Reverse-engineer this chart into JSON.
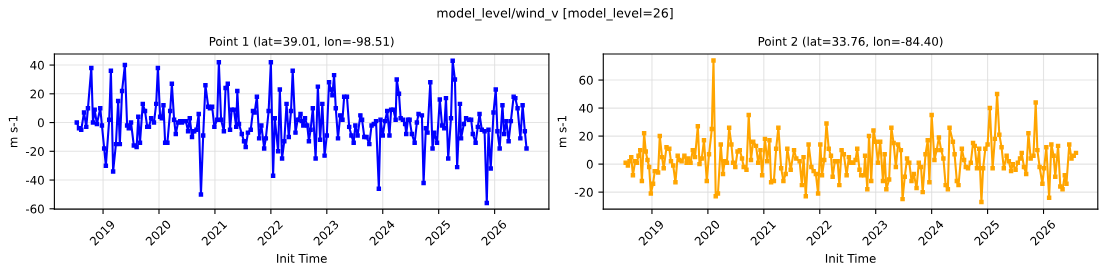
{
  "chart_data": [
    {
      "type": "line",
      "title": "Point 1 (lat=39.01, lon=-98.51)",
      "xlabel": "Init Time",
      "ylabel": "m s-1",
      "annotations": [
        "model_level/wind_v [model_level=26]"
      ],
      "xlim": [
        2018.13,
        2026.97
      ],
      "xticks": [
        2019,
        2020,
        2021,
        2022,
        2023,
        2024,
        2025,
        2026
      ],
      "ylim": [
        -60.2,
        47.7
      ],
      "yticks": [
        -60,
        -40,
        -20,
        0,
        20,
        40
      ],
      "grid": true,
      "marker": "square",
      "line_style": "solid",
      "series": [
        {
          "color": "#0000ff",
          "x": [
            2018.53,
            2018.57,
            2018.61,
            2018.66,
            2018.7,
            2018.73,
            2018.79,
            2018.82,
            2018.85,
            2018.89,
            2018.95,
            2018.98,
            2019.02,
            2019.05,
            2019.11,
            2019.14,
            2019.18,
            2019.23,
            2019.27,
            2019.3,
            2019.34,
            2019.39,
            2019.43,
            2019.46,
            2019.5,
            2019.55,
            2019.6,
            2019.63,
            2019.66,
            2019.71,
            2019.75,
            2019.79,
            2019.82,
            2019.86,
            2019.91,
            2019.95,
            2019.98,
            2020.02,
            2020.05,
            2020.08,
            2020.11,
            2020.15,
            2020.2,
            2020.23,
            2020.27,
            2020.3,
            2020.34,
            2020.38,
            2020.41,
            2020.45,
            2020.48,
            2020.52,
            2020.55,
            2020.59,
            2020.63,
            2020.67,
            2020.71,
            2020.75,
            2020.79,
            2020.83,
            2020.88,
            2020.91,
            2020.95,
            2020.99,
            2021.04,
            2021.07,
            2021.11,
            2021.16,
            2021.19,
            2021.23,
            2021.27,
            2021.3,
            2021.34,
            2021.38,
            2021.4,
            2021.43,
            2021.48,
            2021.52,
            2021.55,
            2021.59,
            2021.64,
            2021.68,
            2021.71,
            2021.75,
            2021.79,
            2021.83,
            2021.88,
            2021.91,
            2021.96,
            2022.0,
            2022.04,
            2022.07,
            2022.13,
            2022.16,
            2022.2,
            2022.24,
            2022.28,
            2022.32,
            2022.36,
            2022.39,
            2022.44,
            2022.48,
            2022.53,
            2022.55,
            2022.58,
            2022.61,
            2022.65,
            2022.68,
            2022.71,
            2022.75,
            2022.8,
            2022.84,
            2022.88,
            2022.92,
            2022.96,
            2023.0,
            2023.04,
            2023.07,
            2023.1,
            2023.13,
            2023.16,
            2023.2,
            2023.24,
            2023.28,
            2023.31,
            2023.36,
            2023.4,
            2023.44,
            2023.48,
            2023.51,
            2023.55,
            2023.6,
            2023.63,
            2023.67,
            2023.71,
            2023.76,
            2023.8,
            2023.84,
            2023.88,
            2023.93,
            2023.96,
            2024.0,
            2024.04,
            2024.08,
            2024.12,
            2024.15,
            2024.19,
            2024.23,
            2024.25,
            2024.29,
            2024.32,
            2024.36,
            2024.4,
            2024.42,
            2024.45,
            2024.48,
            2024.52,
            2024.57,
            2024.61,
            2024.64,
            2024.7,
            2024.73,
            2024.77,
            2024.8,
            2024.85,
            2024.89,
            2024.92,
            2024.97,
            2025.02,
            2025.06,
            2025.1,
            2025.13,
            2025.17,
            2025.22,
            2025.25,
            2025.29,
            2025.33,
            2025.38,
            2025.4,
            2025.45,
            2025.49,
            2025.54,
            2025.58,
            2025.61,
            2025.66,
            2025.7,
            2025.73,
            2025.77,
            2025.82,
            2025.86,
            2025.89,
            2025.93,
            2025.98,
            2026.02,
            2026.05,
            2026.09,
            2026.14,
            2026.17,
            2026.21,
            2026.25,
            2026.29,
            2026.34,
            2026.37,
            2026.41,
            2026.46,
            2026.5,
            2026.54,
            2026.57
          ],
          "values": [
            0,
            -4,
            -5,
            7,
            -3,
            10,
            38,
            0,
            9,
            -1,
            10,
            -2,
            -18,
            -30,
            2,
            36,
            -34,
            -15,
            15,
            -15,
            22,
            40,
            -2,
            -4,
            0,
            -16,
            -17,
            4,
            -14,
            13,
            8,
            -3,
            -3,
            3,
            0,
            13,
            38,
            4,
            3,
            12,
            -14,
            -14,
            8,
            27,
            2,
            -8,
            0,
            1,
            0,
            1,
            1,
            -6,
            3,
            -10,
            -6,
            -5,
            6,
            -50,
            -9,
            26,
            11,
            10,
            11,
            -3,
            2,
            42,
            2,
            -6,
            24,
            27,
            -5,
            9,
            9,
            -3,
            22,
            -1,
            -8,
            -13,
            -17,
            -7,
            -5,
            8,
            7,
            18,
            -11,
            -2,
            -18,
            -11,
            8,
            42,
            -37,
            3,
            -20,
            23,
            -25,
            -13,
            13,
            -10,
            8,
            36,
            -7,
            2,
            6,
            1,
            -2,
            3,
            -2,
            -13,
            -5,
            10,
            -25,
            25,
            -12,
            13,
            -23,
            -9,
            28,
            23,
            19,
            33,
            10,
            -11,
            5,
            2,
            18,
            18,
            -3,
            -9,
            -14,
            -2,
            -9,
            5,
            2,
            -10,
            -10,
            -15,
            -2,
            -1,
            1,
            -46,
            2,
            -9,
            1,
            8,
            -9,
            9,
            9,
            2,
            30,
            20,
            3,
            2,
            -1,
            -8,
            2,
            2,
            -8,
            -14,
            0,
            6,
            5,
            -42,
            -4,
            -7,
            28,
            -18,
            -7,
            -14,
            16,
            -2,
            -4,
            17,
            -25,
            3,
            43,
            30,
            -31,
            13,
            -11,
            -1,
            3,
            2,
            2,
            -8,
            -14,
            -3,
            6,
            -5,
            -6,
            -56,
            -5,
            -32,
            7,
            23,
            -6,
            -18,
            12,
            -8,
            1,
            -13,
            1,
            18,
            17,
            10,
            -11,
            12,
            -6,
            -18
          ]
        }
      ]
    },
    {
      "type": "line",
      "title": "Point 2 (lat=33.76, lon=-84.40)",
      "xlabel": "Init Time",
      "ylabel": "m s-1",
      "xlim": [
        2018.13,
        2026.97
      ],
      "xticks": [
        2019,
        2020,
        2021,
        2022,
        2023,
        2024,
        2025,
        2026
      ],
      "ylim": [
        -32.1,
        78.6
      ],
      "yticks": [
        -20,
        0,
        20,
        40,
        60
      ],
      "grid": true,
      "marker": "square",
      "line_style": "solid",
      "series": [
        {
          "color": "#ffa500",
          "x": [
            2018.53,
            2018.57,
            2018.6,
            2018.63,
            2018.66,
            2018.7,
            2018.73,
            2018.76,
            2018.79,
            2018.82,
            2018.86,
            2018.89,
            2018.92,
            2018.95,
            2018.98,
            2019.02,
            2019.05,
            2019.08,
            2019.11,
            2019.14,
            2019.18,
            2019.21,
            2019.26,
            2019.31,
            2019.34,
            2019.38,
            2019.42,
            2019.46,
            2019.49,
            2019.53,
            2019.58,
            2019.62,
            2019.65,
            2019.69,
            2019.73,
            2019.77,
            2019.82,
            2019.85,
            2019.89,
            2019.93,
            2019.98,
            2020.02,
            2020.07,
            2020.1,
            2020.14,
            2020.18,
            2020.23,
            2020.27,
            2020.3,
            2020.34,
            2020.38,
            2020.42,
            2020.45,
            2020.49,
            2020.53,
            2020.57,
            2020.61,
            2020.64,
            2020.69,
            2020.73,
            2020.77,
            2020.81,
            2020.86,
            2020.9,
            2020.94,
            2020.97,
            2021.02,
            2021.06,
            2021.1,
            2021.13,
            2021.18,
            2021.22,
            2021.26,
            2021.31,
            2021.35,
            2021.39,
            2021.42,
            2021.48,
            2021.54,
            2021.58,
            2021.64,
            2021.68,
            2021.71,
            2021.75,
            2021.8,
            2021.85,
            2021.89,
            2021.93,
            2021.97,
            2022.01,
            2022.04,
            2022.08,
            2022.12,
            2022.16,
            2022.2,
            2022.23,
            2022.27,
            2022.32,
            2022.35,
            2022.39,
            2022.43,
            2022.48,
            2022.52,
            2022.56,
            2022.6,
            2022.64,
            2022.67,
            2022.71,
            2022.74,
            2022.79,
            2022.81,
            2022.85,
            2022.88,
            2022.92,
            2022.96,
            2023.0,
            2023.04,
            2023.08,
            2023.13,
            2023.16,
            2023.19,
            2023.24,
            2023.28,
            2023.32,
            2023.36,
            2023.4,
            2023.45,
            2023.48,
            2023.52,
            2023.56,
            2023.6,
            2023.64,
            2023.68,
            2023.73,
            2023.77,
            2023.81,
            2023.84,
            2023.89,
            2023.93,
            2023.96,
            2024.0,
            2024.05,
            2024.09,
            2024.13,
            2024.17,
            2024.21,
            2024.25,
            2024.29,
            2024.32,
            2024.38,
            2024.41,
            2024.45,
            2024.48,
            2024.54,
            2024.58,
            2024.61,
            2024.65,
            2024.7,
            2024.74,
            2024.77,
            2024.81,
            2024.85,
            2024.89,
            2024.92,
            2024.96,
            2025.0,
            2025.04,
            2025.09,
            2025.13,
            2025.17,
            2025.21,
            2025.25,
            2025.29,
            2025.34,
            2025.38,
            2025.42,
            2025.45,
            2025.5,
            2025.54,
            2025.58,
            2025.61,
            2025.65,
            2025.69,
            2025.73,
            2025.77,
            2025.82,
            2025.86,
            2025.89,
            2025.93,
            2025.98,
            2026.01,
            2026.05,
            2026.1,
            2026.14,
            2026.18,
            2026.21,
            2026.26,
            2026.3,
            2026.34,
            2026.38,
            2026.41,
            2026.46,
            2026.5,
            2026.54,
            2026.58
          ],
          "values": [
            1,
            -1,
            2,
            5,
            -8,
            2,
            1,
            6,
            10,
            -12,
            22,
            9,
            3,
            -2,
            -21,
            -14,
            -5,
            -5,
            -6,
            20,
            5,
            -3,
            12,
            11,
            2,
            -1,
            -13,
            6,
            3,
            2,
            6,
            1,
            4,
            1,
            10,
            5,
            27,
            0,
            4,
            17,
            -12,
            7,
            25,
            74,
            -23,
            -21,
            14,
            -7,
            2,
            1,
            26,
            14,
            1,
            -2,
            9,
            10,
            4,
            -2,
            -4,
            35,
            3,
            16,
            13,
            1,
            10,
            -8,
            18,
            2,
            17,
            -13,
            -12,
            11,
            26,
            -3,
            -12,
            -7,
            11,
            -4,
            10,
            4,
            2,
            -15,
            5,
            -23,
            14,
            -2,
            -5,
            -7,
            -21,
            14,
            -8,
            3,
            29,
            11,
            6,
            -9,
            2,
            2,
            -15,
            10,
            7,
            -8,
            5,
            1,
            1,
            3,
            11,
            -4,
            -8,
            -8,
            6,
            -18,
            20,
            -12,
            24,
            16,
            1,
            16,
            -12,
            7,
            -18,
            -11,
            26,
            15,
            -2,
            14,
            10,
            -25,
            -9,
            4,
            1,
            -12,
            -7,
            -17,
            1,
            -2,
            -20,
            7,
            17,
            -13,
            35,
            3,
            10,
            19,
            10,
            4,
            -15,
            -18,
            26,
            16,
            7,
            -12,
            -15,
            11,
            3,
            -2,
            -3,
            1,
            15,
            13,
            -3,
            11,
            -27,
            -3,
            11,
            14,
            40,
            -3,
            18,
            50,
            21,
            12,
            -3,
            6,
            2,
            -5,
            0,
            -4,
            1,
            4,
            8,
            -2,
            -7,
            22,
            4,
            6,
            44,
            10,
            -2,
            -14,
            -3,
            12,
            -24,
            14,
            6,
            -9,
            13,
            -16,
            -18,
            -8,
            -14,
            14,
            4,
            6,
            8
          ]
        }
      ]
    }
  ]
}
